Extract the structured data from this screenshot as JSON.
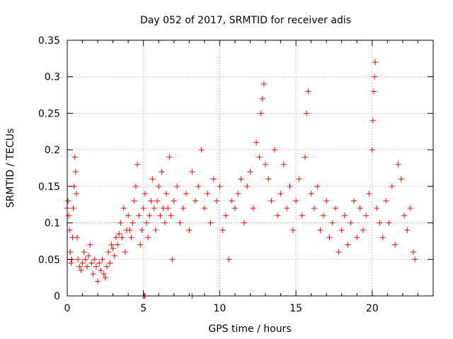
{
  "chart_data": {
    "type": "scatter",
    "title": "Day 052 of 2017, SRMTID for receiver adis",
    "xlabel": "GPS time / hours",
    "ylabel": "SRMTID / TECUs",
    "xlim": [
      0,
      24
    ],
    "ylim": [
      0,
      0.35
    ],
    "xticks": [
      0,
      5,
      10,
      15,
      20
    ],
    "xtick_labels": [
      "0",
      "5",
      "10",
      "15",
      "20"
    ],
    "yticks": [
      0,
      0.05,
      0.1,
      0.15,
      0.2,
      0.25,
      0.3,
      0.35
    ],
    "ytick_labels": [
      "0",
      "0.05",
      "0.1",
      "0.15",
      "0.2",
      "0.25",
      "0.3",
      "0.35"
    ],
    "grid": true,
    "marker": "+",
    "series": [
      {
        "name": "SRMTID",
        "color": "#ff0000",
        "points": [
          [
            0.0,
            0.12
          ],
          [
            0.05,
            0.13
          ],
          [
            0.1,
            0.11
          ],
          [
            0.15,
            0.09
          ],
          [
            0.2,
            0.06
          ],
          [
            0.25,
            0.045
          ],
          [
            0.3,
            0.05
          ],
          [
            0.35,
            0.08
          ],
          [
            0.4,
            0.12
          ],
          [
            0.45,
            0.15
          ],
          [
            0.5,
            0.19
          ],
          [
            0.55,
            0.17
          ],
          [
            0.6,
            0.14
          ],
          [
            0.65,
            0.08
          ],
          [
            0.7,
            0.05
          ],
          [
            0.8,
            0.04
          ],
          [
            0.9,
            0.035
          ],
          [
            1.0,
            0.045
          ],
          [
            1.1,
            0.06
          ],
          [
            1.2,
            0.05
          ],
          [
            1.3,
            0.04
          ],
          [
            1.4,
            0.055
          ],
          [
            1.5,
            0.07
          ],
          [
            1.6,
            0.045
          ],
          [
            1.7,
            0.03
          ],
          [
            1.8,
            0.05
          ],
          [
            1.9,
            0.04
          ],
          [
            2.0,
            0.02
          ],
          [
            2.1,
            0.045
          ],
          [
            2.2,
            0.035
          ],
          [
            2.3,
            0.05
          ],
          [
            2.4,
            0.03
          ],
          [
            2.5,
            0.025
          ],
          [
            2.6,
            0.04
          ],
          [
            2.7,
            0.06
          ],
          [
            2.8,
            0.045
          ],
          [
            2.9,
            0.07
          ],
          [
            3.0,
            0.065
          ],
          [
            3.1,
            0.055
          ],
          [
            3.2,
            0.08
          ],
          [
            3.3,
            0.07
          ],
          [
            3.4,
            0.085
          ],
          [
            3.5,
            0.1
          ],
          [
            3.6,
            0.08
          ],
          [
            3.7,
            0.12
          ],
          [
            3.8,
            0.06
          ],
          [
            3.9,
            0.09
          ],
          [
            4.0,
            0.11
          ],
          [
            4.1,
            0.09
          ],
          [
            4.2,
            0.08
          ],
          [
            4.3,
            0.1
          ],
          [
            4.4,
            0.13
          ],
          [
            4.5,
            0.15
          ],
          [
            4.6,
            0.18
          ],
          [
            4.7,
            0.11
          ],
          [
            4.8,
            0.07
          ],
          [
            4.9,
            0.09
          ],
          [
            5.0,
            0.12
          ],
          [
            5.1,
            0.14
          ],
          [
            5.2,
            0.1
          ],
          [
            5.3,
            0.08
          ],
          [
            5.4,
            0.11
          ],
          [
            5.5,
            0.13
          ],
          [
            5.6,
            0.16
          ],
          [
            5.7,
            0.12
          ],
          [
            5.8,
            0.09
          ],
          [
            5.9,
            0.13
          ],
          [
            6.0,
            0.15
          ],
          [
            6.1,
            0.11
          ],
          [
            6.2,
            0.17
          ],
          [
            6.3,
            0.12
          ],
          [
            6.4,
            0.1
          ],
          [
            6.5,
            0.14
          ],
          [
            6.6,
            0.12
          ],
          [
            6.7,
            0.19
          ],
          [
            6.8,
            0.11
          ],
          [
            6.9,
            0.05
          ],
          [
            7.0,
            0.13
          ],
          [
            7.2,
            0.15
          ],
          [
            7.4,
            0.1
          ],
          [
            7.6,
            0.12
          ],
          [
            7.8,
            0.14
          ],
          [
            8.0,
            0.09
          ],
          [
            8.2,
            0.17
          ],
          [
            8.4,
            0.13
          ],
          [
            8.6,
            0.15
          ],
          [
            8.8,
            0.2
          ],
          [
            9.0,
            0.12
          ],
          [
            9.2,
            0.14
          ],
          [
            9.4,
            0.1
          ],
          [
            9.6,
            0.16
          ],
          [
            9.8,
            0.13
          ],
          [
            10.0,
            0.15
          ],
          [
            10.2,
            0.09
          ],
          [
            10.4,
            0.11
          ],
          [
            10.6,
            0.05
          ],
          [
            10.8,
            0.13
          ],
          [
            11.0,
            0.12
          ],
          [
            11.2,
            0.14
          ],
          [
            11.4,
            0.16
          ],
          [
            11.6,
            0.1
          ],
          [
            11.8,
            0.15
          ],
          [
            12.0,
            0.17
          ],
          [
            12.2,
            0.12
          ],
          [
            12.4,
            0.21
          ],
          [
            12.6,
            0.19
          ],
          [
            12.7,
            0.25
          ],
          [
            12.8,
            0.27
          ],
          [
            12.9,
            0.29
          ],
          [
            13.0,
            0.18
          ],
          [
            13.2,
            0.16
          ],
          [
            13.4,
            0.13
          ],
          [
            13.6,
            0.2
          ],
          [
            13.8,
            0.11
          ],
          [
            14.0,
            0.14
          ],
          [
            14.2,
            0.18
          ],
          [
            14.4,
            0.12
          ],
          [
            14.6,
            0.15
          ],
          [
            14.8,
            0.09
          ],
          [
            15.0,
            0.13
          ],
          [
            15.2,
            0.16
          ],
          [
            15.4,
            0.11
          ],
          [
            15.6,
            0.19
          ],
          [
            15.7,
            0.25
          ],
          [
            15.8,
            0.28
          ],
          [
            16.0,
            0.14
          ],
          [
            16.2,
            0.12
          ],
          [
            16.4,
            0.15
          ],
          [
            16.6,
            0.09
          ],
          [
            16.8,
            0.11
          ],
          [
            17.0,
            0.13
          ],
          [
            17.2,
            0.08
          ],
          [
            17.4,
            0.1
          ],
          [
            17.6,
            0.12
          ],
          [
            17.8,
            0.06
          ],
          [
            18.0,
            0.09
          ],
          [
            18.2,
            0.11
          ],
          [
            18.4,
            0.07
          ],
          [
            18.6,
            0.1
          ],
          [
            18.8,
            0.13
          ],
          [
            19.0,
            0.08
          ],
          [
            19.2,
            0.12
          ],
          [
            19.4,
            0.09
          ],
          [
            19.6,
            0.11
          ],
          [
            19.8,
            0.14
          ],
          [
            20.0,
            0.2
          ],
          [
            20.05,
            0.24
          ],
          [
            20.1,
            0.28
          ],
          [
            20.15,
            0.3
          ],
          [
            20.2,
            0.32
          ],
          [
            20.3,
            0.12
          ],
          [
            20.5,
            0.1
          ],
          [
            20.7,
            0.08
          ],
          [
            20.9,
            0.13
          ],
          [
            21.1,
            0.1
          ],
          [
            21.3,
            0.15
          ],
          [
            21.5,
            0.07
          ],
          [
            21.7,
            0.18
          ],
          [
            21.9,
            0.16
          ],
          [
            22.1,
            0.11
          ],
          [
            22.3,
            0.09
          ],
          [
            22.5,
            0.12
          ],
          [
            22.7,
            0.06
          ],
          [
            22.8,
            0.05
          ],
          [
            5.0,
            0.0
          ],
          [
            5.05,
            0.0
          ],
          [
            5.1,
            0.0
          ],
          [
            8.2,
            0.0
          ]
        ]
      }
    ]
  }
}
